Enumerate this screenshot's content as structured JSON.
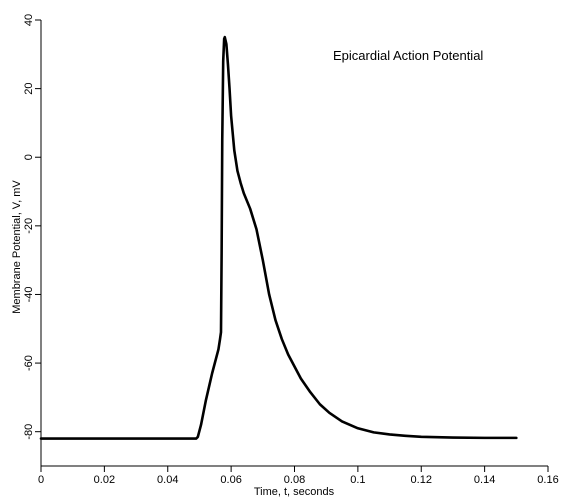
{
  "chart_data": {
    "type": "line",
    "title": "Epicardial Action Potential",
    "xlabel": "Time, t, seconds",
    "ylabel": "Membrane Potential, V, mV",
    "xlim": [
      0,
      0.16
    ],
    "ylim": [
      -90,
      40
    ],
    "x_ticks": [
      0,
      0.02,
      0.04,
      0.06,
      0.08,
      0.1,
      0.12,
      0.14,
      0.16
    ],
    "x_tick_labels": [
      "0",
      "0.02",
      "0.04",
      "0.06",
      "0.08",
      "0.1",
      "0.12",
      "0.14",
      "0.16"
    ],
    "y_ticks": [
      -80,
      -60,
      -40,
      -20,
      0,
      20,
      40
    ],
    "y_tick_labels": [
      "-80",
      "-60",
      "-40",
      "-20",
      "0",
      "20",
      "40"
    ],
    "grid": false,
    "series": [
      {
        "color": "#000000",
        "x": [
          0,
          0.01,
          0.02,
          0.03,
          0.04,
          0.049,
          0.0495,
          0.0505,
          0.052,
          0.054,
          0.056,
          0.0565,
          0.0568,
          0.057,
          0.0572,
          0.0575,
          0.0578,
          0.058,
          0.0585,
          0.059,
          0.0595,
          0.06,
          0.061,
          0.062,
          0.063,
          0.064,
          0.066,
          0.068,
          0.07,
          0.072,
          0.074,
          0.076,
          0.078,
          0.08,
          0.082,
          0.085,
          0.088,
          0.091,
          0.095,
          0.1,
          0.105,
          0.11,
          0.115,
          0.12,
          0.13,
          0.14,
          0.15
        ],
        "y": [
          -82,
          -82,
          -82,
          -82,
          -82,
          -82,
          -81.5,
          -78,
          -71,
          -63,
          -56,
          -53,
          -51,
          -28,
          5,
          28,
          34.5,
          35,
          33,
          27,
          20,
          12,
          2,
          -4,
          -7.5,
          -10.5,
          -15,
          -21,
          -30,
          -40,
          -47.5,
          -53,
          -57.5,
          -61,
          -64.5,
          -68.5,
          -72,
          -74.5,
          -77,
          -79,
          -80.2,
          -80.8,
          -81.2,
          -81.5,
          -81.7,
          -81.8,
          -81.8
        ]
      }
    ]
  }
}
